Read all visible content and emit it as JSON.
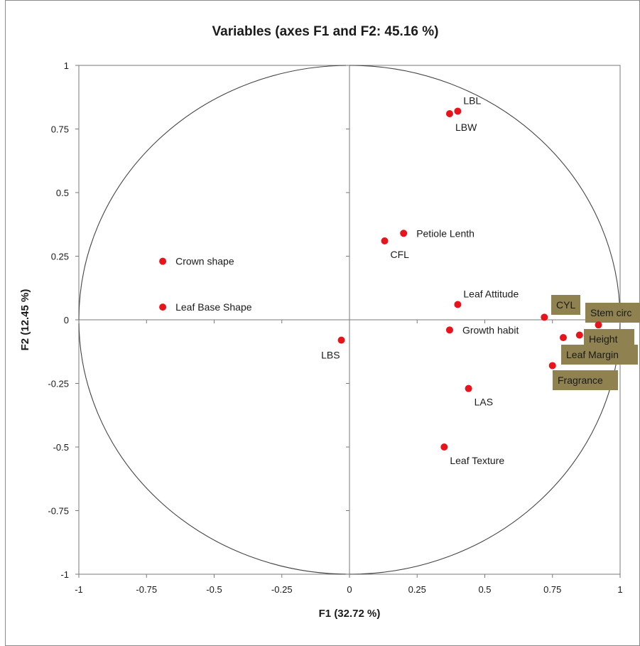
{
  "chart_data": {
    "type": "scatter",
    "title": "Variables (axes F1 and F2: 45.16 %)",
    "xlabel": "F1 (32.72 %)",
    "ylabel": "F2 (12.45 %)",
    "xlim": [
      -1,
      1
    ],
    "ylim": [
      -1,
      1
    ],
    "x_ticks": [
      -1,
      -0.75,
      -0.5,
      -0.25,
      0,
      0.25,
      0.5,
      0.75,
      1
    ],
    "y_ticks": [
      -1,
      -0.75,
      -0.5,
      -0.25,
      0,
      0.25,
      0.5,
      0.75,
      1
    ],
    "x_tick_labels": [
      "-1",
      "-0.75",
      "-0.5",
      "-0.25",
      "0",
      "0.25",
      "0.5",
      "0.75",
      "1"
    ],
    "y_tick_labels": [
      "-1",
      "-0.75",
      "-0.5",
      "-0.25",
      "0",
      "0.25",
      "0.5",
      "0.75",
      "1"
    ],
    "correlation_circle": true,
    "grid": false,
    "marker_color": "#e8141b",
    "label_box_color": "#8f8250",
    "points": [
      {
        "label": "LBL",
        "x": 0.4,
        "y": 0.82,
        "anchor": "above-right",
        "boxed": false
      },
      {
        "label": "LBW",
        "x": 0.37,
        "y": 0.81,
        "anchor": "below-right",
        "boxed": false
      },
      {
        "label": "Petiole Lenth",
        "x": 0.2,
        "y": 0.34,
        "anchor": "right",
        "boxed": false
      },
      {
        "label": "CFL",
        "x": 0.13,
        "y": 0.31,
        "anchor": "below-right",
        "boxed": false
      },
      {
        "label": "Crown shape",
        "x": -0.69,
        "y": 0.23,
        "anchor": "right",
        "boxed": false
      },
      {
        "label": "Leaf Base Shape",
        "x": -0.69,
        "y": 0.05,
        "anchor": "right",
        "boxed": false
      },
      {
        "label": "Leaf Attitude",
        "x": 0.4,
        "y": 0.06,
        "anchor": "above-right",
        "boxed": false
      },
      {
        "label": "Growth habit",
        "x": 0.37,
        "y": -0.04,
        "anchor": "right",
        "boxed": false
      },
      {
        "label": "LBS",
        "x": -0.03,
        "y": -0.08,
        "anchor": "below-left",
        "boxed": false
      },
      {
        "label": "LAS",
        "x": 0.44,
        "y": -0.27,
        "anchor": "below-right",
        "boxed": false
      },
      {
        "label": "Leaf Texture",
        "x": 0.35,
        "y": -0.5,
        "anchor": "below-right",
        "boxed": false
      },
      {
        "label": "CYL",
        "x": 0.72,
        "y": 0.01,
        "anchor": "box-cyl",
        "boxed": true
      },
      {
        "label": "Stem circ",
        "x": 0.92,
        "y": -0.02,
        "anchor": "box-stem",
        "boxed": true
      },
      {
        "label": "Height",
        "x": 0.85,
        "y": -0.06,
        "anchor": "box-height",
        "boxed": true
      },
      {
        "label": "Leaf Margin",
        "x": 0.79,
        "y": -0.07,
        "anchor": "box-margin",
        "boxed": true
      },
      {
        "label": "Fragrance",
        "x": 0.75,
        "y": -0.18,
        "anchor": "box-fragrance",
        "boxed": true
      }
    ]
  }
}
